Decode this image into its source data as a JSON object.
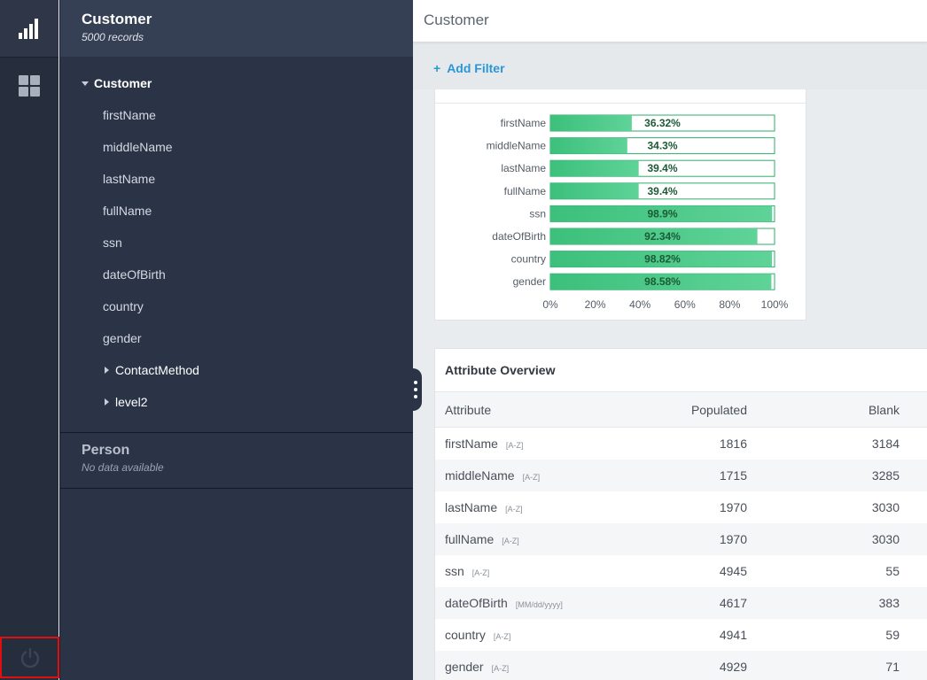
{
  "rail": {
    "items": [
      {
        "icon": "bar-chart-icon",
        "active": true
      },
      {
        "icon": "grid-icon",
        "active": false
      },
      {
        "icon": "power-icon",
        "active": false
      }
    ]
  },
  "panel": {
    "datasources": [
      {
        "title": "Customer",
        "subtitle": "5000 records"
      },
      {
        "title": "Person",
        "subtitle": "No data available"
      }
    ],
    "tree": {
      "root": "Customer",
      "fields": [
        "firstName",
        "middleName",
        "lastName",
        "fullName",
        "ssn",
        "dateOfBirth",
        "country",
        "gender"
      ],
      "groups": [
        "ContactMethod",
        "level2"
      ]
    }
  },
  "header": {
    "title": "Customer"
  },
  "filter": {
    "label": "Add Filter"
  },
  "chart_data": {
    "type": "bar",
    "orientation": "horizontal",
    "categories": [
      "firstName",
      "middleName",
      "lastName",
      "fullName",
      "ssn",
      "dateOfBirth",
      "country",
      "gender"
    ],
    "values": [
      36.32,
      34.3,
      39.4,
      39.4,
      98.9,
      92.34,
      98.82,
      98.58
    ],
    "value_labels": [
      "36.32%",
      "34.3%",
      "39.4%",
      "39.4%",
      "98.9%",
      "92.34%",
      "98.82%",
      "98.58%"
    ],
    "xlim": [
      0,
      100
    ],
    "x_ticks": [
      0,
      20,
      40,
      60,
      80,
      100
    ],
    "x_tick_labels": [
      "0%",
      "20%",
      "40%",
      "60%",
      "80%",
      "100%"
    ],
    "colors": {
      "fill": "#3cc07b",
      "fill_light": "#5fd398",
      "border": "#2fae6b",
      "label": "#1d5a36"
    },
    "grid": false,
    "legend": "none"
  },
  "table": {
    "title": "Attribute Overview",
    "columns": [
      "Attribute",
      "Populated",
      "Blank"
    ],
    "rows": [
      {
        "attribute": "firstName",
        "format": "[A-Z]",
        "populated": "1816",
        "blank": "3184"
      },
      {
        "attribute": "middleName",
        "format": "[A-Z]",
        "populated": "1715",
        "blank": "3285"
      },
      {
        "attribute": "lastName",
        "format": "[A-Z]",
        "populated": "1970",
        "blank": "3030"
      },
      {
        "attribute": "fullName",
        "format": "[A-Z]",
        "populated": "1970",
        "blank": "3030"
      },
      {
        "attribute": "ssn",
        "format": "[A-Z]",
        "populated": "4945",
        "blank": "55"
      },
      {
        "attribute": "dateOfBirth",
        "format": "[MM/dd/yyyy]",
        "populated": "4617",
        "blank": "383"
      },
      {
        "attribute": "country",
        "format": "[A-Z]",
        "populated": "4941",
        "blank": "59"
      },
      {
        "attribute": "gender",
        "format": "[A-Z]",
        "populated": "4929",
        "blank": "71"
      }
    ]
  }
}
